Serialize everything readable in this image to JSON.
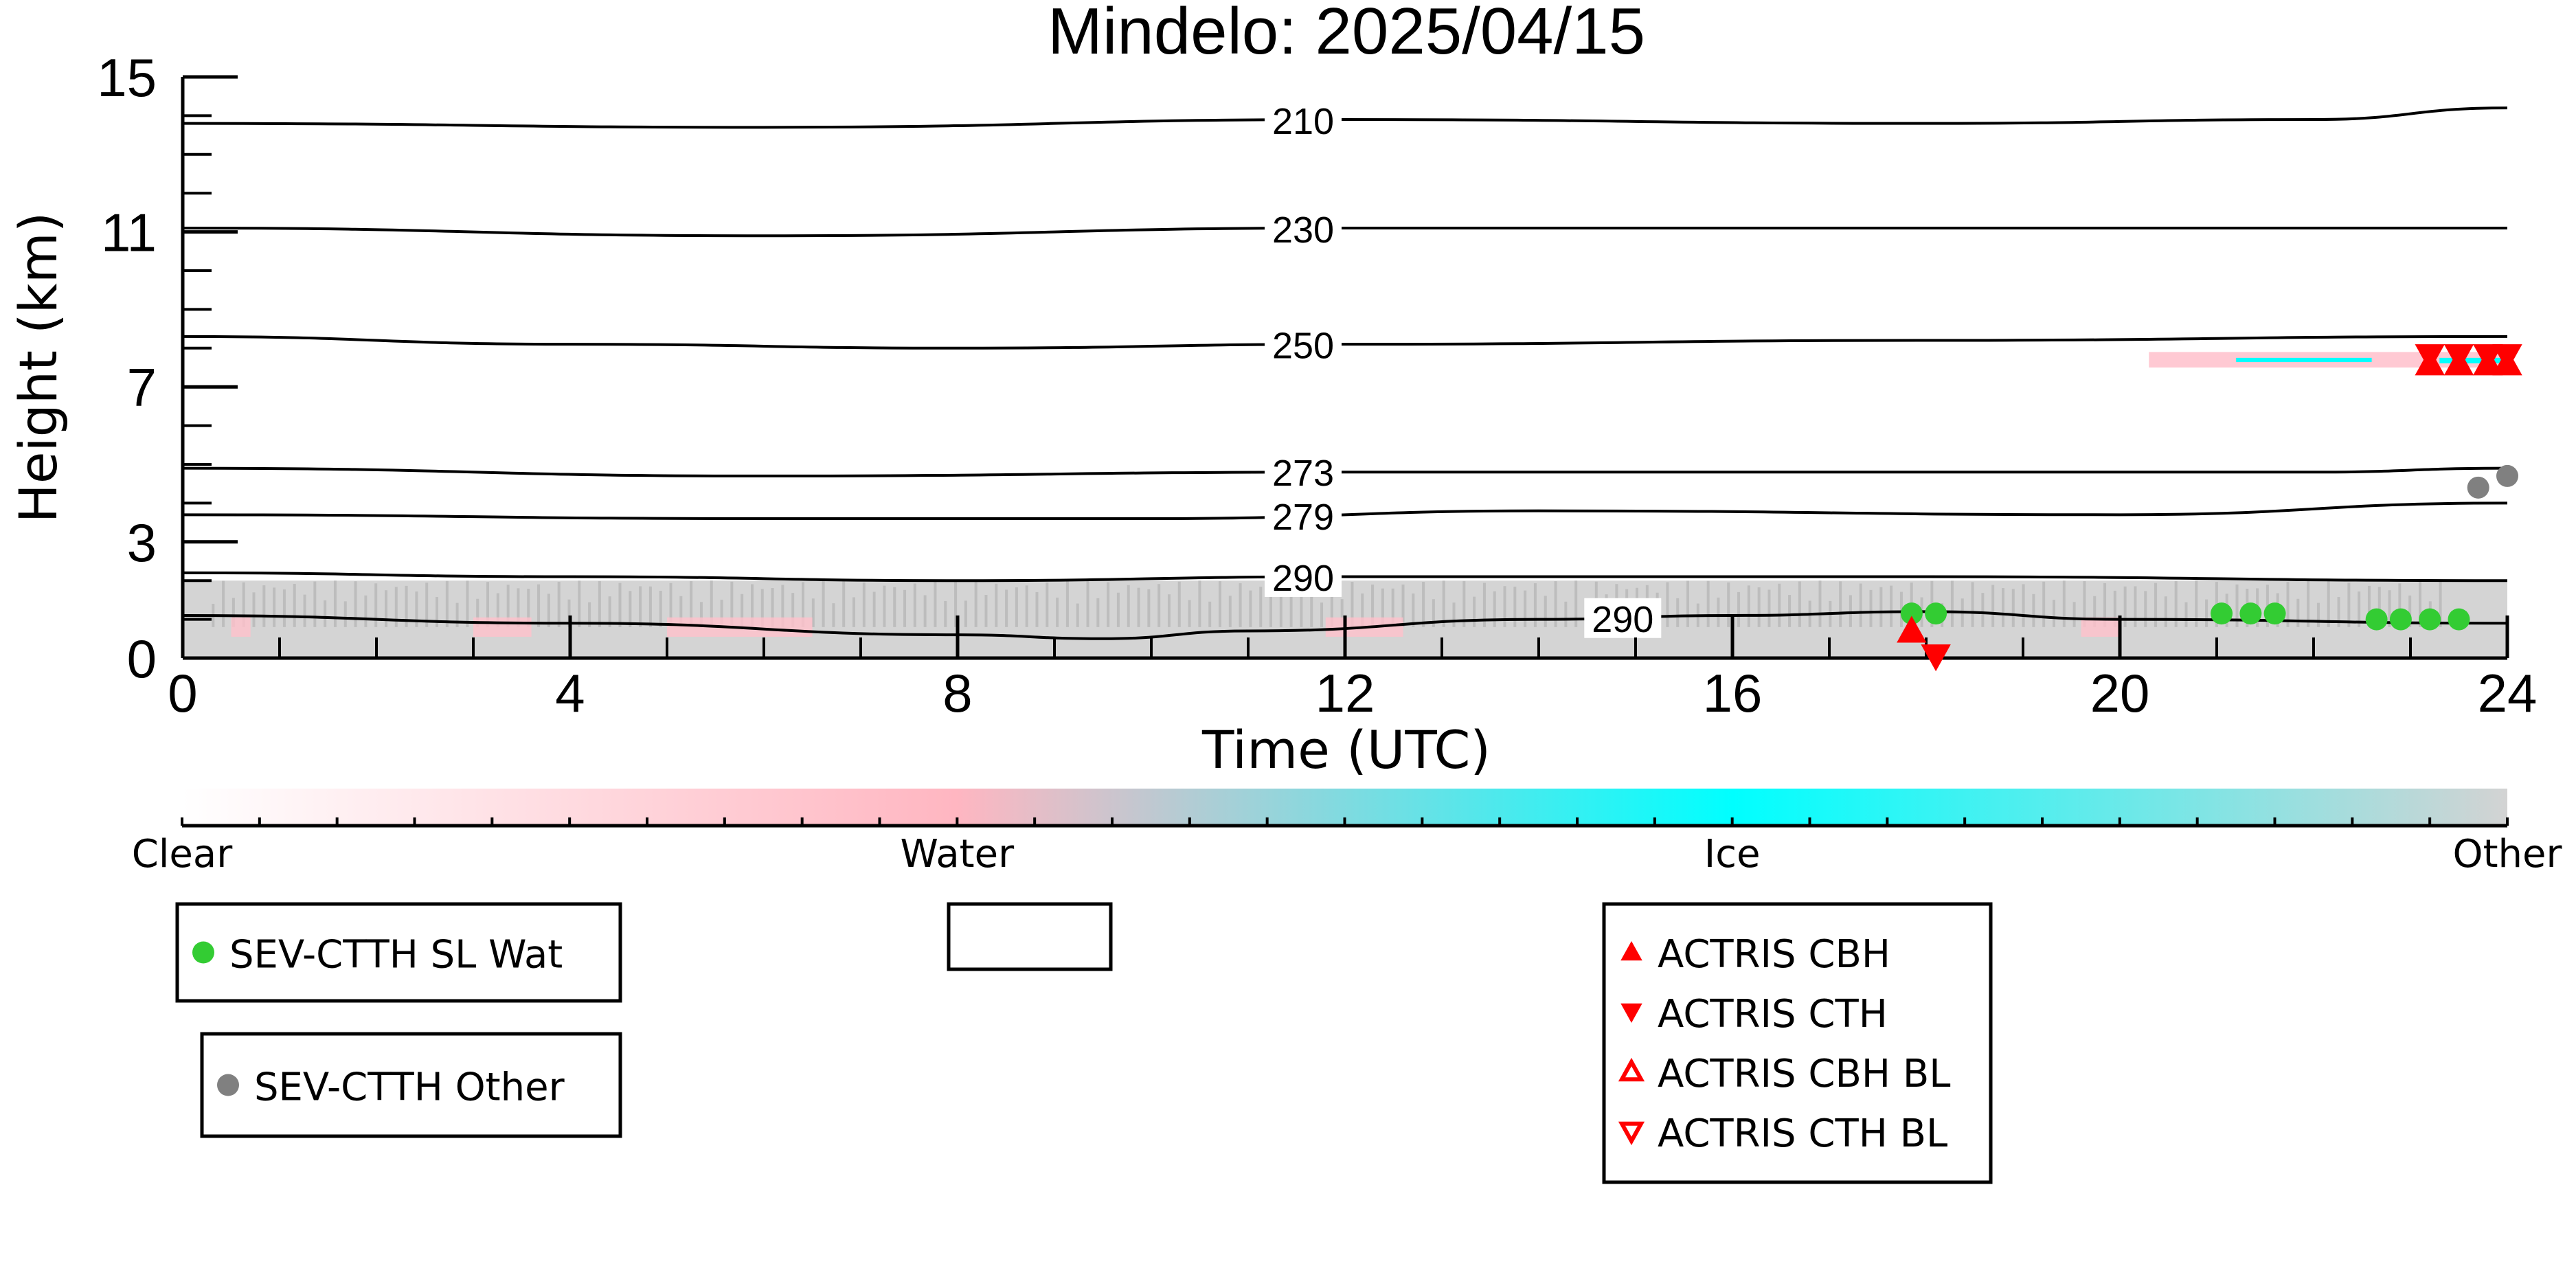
{
  "chart_data": {
    "type": "scatter",
    "title": "Mindelo: 2025/04/15",
    "xlabel": "Time (UTC)",
    "ylabel": "Height (km)",
    "xlim": [
      0,
      24
    ],
    "ylim": [
      0,
      15
    ],
    "x_ticks": [
      0,
      4,
      8,
      12,
      16,
      20,
      24
    ],
    "y_ticks": [
      0,
      3,
      7,
      11,
      15
    ],
    "isotherms": [
      {
        "label": "210",
        "points": [
          [
            0,
            13.8
          ],
          [
            6,
            13.7
          ],
          [
            12,
            13.9
          ],
          [
            18,
            13.8
          ],
          [
            22,
            13.9
          ],
          [
            24,
            14.2
          ]
        ]
      },
      {
        "label": "230",
        "points": [
          [
            0,
            11.1
          ],
          [
            6,
            10.9
          ],
          [
            12,
            11.1
          ],
          [
            18,
            11.1
          ],
          [
            24,
            11.1
          ]
        ]
      },
      {
        "label": "250",
        "points": [
          [
            0,
            8.3
          ],
          [
            4,
            8.1
          ],
          [
            8,
            8.0
          ],
          [
            12,
            8.1
          ],
          [
            18,
            8.2
          ],
          [
            24,
            8.3
          ]
        ]
      },
      {
        "label": "273",
        "points": [
          [
            0,
            4.9
          ],
          [
            6,
            4.7
          ],
          [
            12,
            4.8
          ],
          [
            18,
            4.8
          ],
          [
            22,
            4.8
          ],
          [
            24,
            4.9
          ]
        ]
      },
      {
        "label": "279",
        "points": [
          [
            0,
            3.7
          ],
          [
            6,
            3.6
          ],
          [
            10,
            3.6
          ],
          [
            14,
            3.8
          ],
          [
            20,
            3.7
          ],
          [
            24,
            4.0
          ]
        ]
      },
      {
        "label": "290",
        "points": [
          [
            0,
            2.2
          ],
          [
            4,
            2.1
          ],
          [
            8,
            2.0
          ],
          [
            12,
            2.1
          ],
          [
            18,
            2.1
          ],
          [
            24,
            2.0
          ]
        ]
      },
      {
        "label": "290",
        "points": [
          [
            0,
            1.1
          ],
          [
            4,
            0.9
          ],
          [
            8,
            0.6
          ],
          [
            9.5,
            0.5
          ],
          [
            11,
            0.7
          ],
          [
            14,
            1.0
          ],
          [
            16,
            1.1
          ],
          [
            18,
            1.2
          ],
          [
            20,
            1.0
          ],
          [
            24,
            0.9
          ]
        ]
      }
    ],
    "series": [
      {
        "name": "SEV-CTTH SL Wat",
        "color": "#33cc33",
        "marker": "circle",
        "points": [
          [
            17.85,
            1.15
          ],
          [
            18.1,
            1.15
          ],
          [
            21.05,
            1.15
          ],
          [
            21.35,
            1.15
          ],
          [
            21.6,
            1.15
          ],
          [
            22.65,
            1.0
          ],
          [
            22.9,
            1.0
          ],
          [
            23.2,
            1.0
          ],
          [
            23.5,
            1.0
          ]
        ]
      },
      {
        "name": "SEV-CTTH Other",
        "color": "#808080",
        "marker": "circle",
        "points": [
          [
            23.7,
            4.4
          ],
          [
            24.0,
            4.7
          ]
        ]
      },
      {
        "name": "ACTRIS CBH",
        "color": "#ff0000",
        "marker": "triangle-up",
        "points": [
          [
            17.85,
            0.7
          ],
          [
            23.2,
            7.6
          ],
          [
            23.5,
            7.6
          ],
          [
            23.8,
            7.6
          ],
          [
            24.0,
            7.6
          ]
        ]
      },
      {
        "name": "ACTRIS CTH",
        "color": "#ff0000",
        "marker": "triangle-down",
        "points": [
          [
            18.1,
            0.05
          ],
          [
            23.2,
            7.8
          ],
          [
            23.5,
            7.8
          ],
          [
            23.8,
            7.8
          ],
          [
            24.0,
            7.8
          ]
        ]
      },
      {
        "name": "ACTRIS CBH BL",
        "color": "#ff0000",
        "marker": "triangle-up-open",
        "points": []
      },
      {
        "name": "ACTRIS CTH BL",
        "color": "#ff0000",
        "marker": "triangle-down-open",
        "points": []
      }
    ],
    "background": {
      "low_other_band": {
        "color": "#cfcfcf",
        "x_range": [
          0,
          24
        ],
        "height_range": [
          0,
          2.0
        ]
      },
      "high_cloud_band": {
        "x_range": [
          20.3,
          24
        ],
        "height_range": [
          7.5,
          7.9
        ],
        "colors": [
          "#ffc0cb",
          "#00ffff"
        ]
      }
    },
    "colorbar": {
      "labels": [
        "Clear",
        "Water",
        "Ice",
        "Other"
      ],
      "colors": [
        "#ffffff",
        "#ffb6c1",
        "#00ffff",
        "#d3d3d3"
      ]
    },
    "legends": [
      {
        "items": [
          "SEV-CTTH SL Wat"
        ]
      },
      {
        "items": [
          "SEV-CTTH Other"
        ]
      },
      {
        "items": []
      },
      {
        "items": [
          "ACTRIS CBH",
          "ACTRIS CTH",
          "ACTRIS CBH BL",
          "ACTRIS CTH BL"
        ]
      }
    ]
  }
}
